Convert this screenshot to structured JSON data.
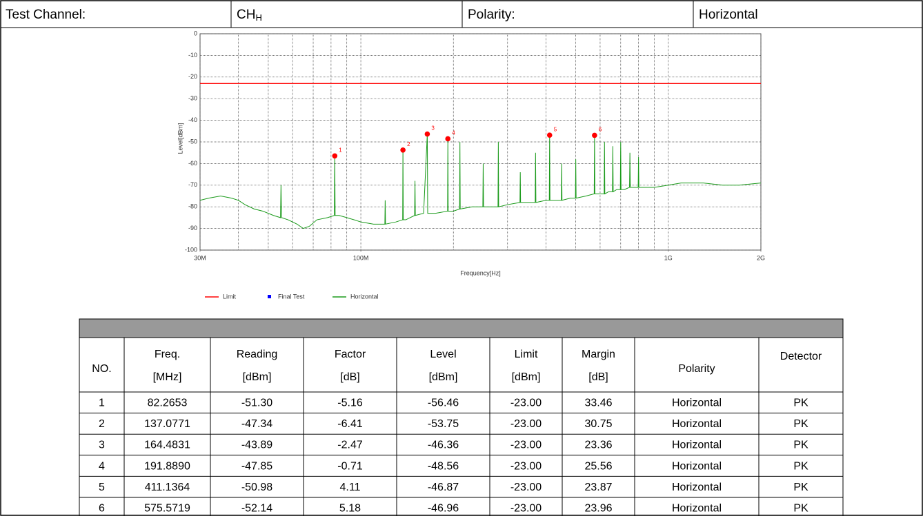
{
  "header": {
    "channel_label": "Test Channel:",
    "channel": "CH",
    "channel_sub": "H",
    "polarity_label": "Polarity:",
    "polarity": "Horizontal"
  },
  "chart_data": {
    "type": "line",
    "x_label": "Frequency[Hz]",
    "y_label": "Level[dBm]",
    "log_x": true,
    "grid": true,
    "xlim": [
      30000000,
      2000000000
    ],
    "xticks": [
      {
        "value": 30000000,
        "label": "30M"
      },
      {
        "value": 100000000,
        "label": "100M"
      },
      {
        "value": 1000000000,
        "label": "1G"
      },
      {
        "value": 2000000000,
        "label": "2G"
      }
    ],
    "xminor": [
      40000000,
      50000000,
      60000000,
      70000000,
      80000000,
      90000000,
      200000000,
      300000000,
      400000000,
      500000000,
      600000000,
      700000000,
      800000000,
      900000000
    ],
    "ylim": [
      -100,
      0
    ],
    "yticks": [
      0,
      -10,
      -20,
      -30,
      -40,
      -50,
      -60,
      -70,
      -80,
      -90,
      -100
    ],
    "series": [
      {
        "name": "Limit",
        "color": "#ff0000",
        "x": [
          30000000,
          2000000000
        ],
        "values": [
          -23,
          -23
        ]
      },
      {
        "name": "Final Test",
        "color": "#0000ff",
        "marker_color": "#ff0000",
        "labels": [
          "1",
          "2",
          "3",
          "4",
          "5",
          "6"
        ],
        "x": [
          82265300,
          137077100,
          164483100,
          191889000,
          411136400,
          575571900
        ],
        "values": [
          -56.46,
          -53.75,
          -46.36,
          -48.56,
          -46.87,
          -46.96
        ]
      },
      {
        "name": "Horizontal",
        "color": "#1a9a1a",
        "x": [
          30000000,
          32000000,
          35000000,
          38000000,
          40000000,
          42000000,
          45000000,
          48000000,
          52000000,
          54800000,
          55000000,
          55200000,
          58000000,
          62000000,
          65000000,
          68000000,
          72000000,
          78000000,
          82000000,
          82265300,
          82500000,
          85000000,
          90000000,
          95000000,
          100000000,
          110000000,
          119700000,
          120000000,
          120300000,
          130000000,
          136800000,
          137077100,
          137400000,
          140000000,
          149600000,
          150000000,
          150400000,
          160000000,
          164483100,
          165000000,
          175000000,
          191500000,
          191889000,
          192300000,
          200000000,
          209500000,
          210000000,
          210500000,
          230000000,
          249300000,
          250000000,
          250700000,
          260000000,
          279300000,
          280000000,
          280700000,
          300000000,
          329200000,
          330000000,
          330800000,
          350000000,
          369000000,
          370000000,
          371000000,
          400000000,
          410100000,
          411136400,
          412200000,
          430000000,
          448900000,
          450000000,
          451100000,
          480000000,
          498700000,
          500000000,
          501300000,
          540000000,
          574000000,
          575571900,
          577000000,
          600000000,
          618400000,
          620000000,
          621600000,
          640000000,
          658200000,
          660000000,
          661800000,
          680000000,
          698100000,
          700000000,
          701900000,
          720000000,
          747900000,
          750000000,
          752100000,
          770000000,
          797800000,
          800000000,
          802200000,
          900000000,
          1000000000,
          1100000000,
          1300000000,
          1500000000,
          1700000000,
          2000000000
        ],
        "values": [
          -77,
          -76,
          -75,
          -76,
          -77,
          -79,
          -81,
          -82,
          -84,
          -85,
          -70,
          -85,
          -86,
          -88,
          -90,
          -89,
          -86,
          -85,
          -84,
          -56.46,
          -84,
          -84,
          -85,
          -86,
          -87,
          -88,
          -88,
          -77,
          -88,
          -87,
          -86,
          -53.75,
          -86,
          -86,
          -84,
          -68,
          -84,
          -83,
          -46.36,
          -83,
          -83,
          -82,
          -48.56,
          -82,
          -82,
          -81,
          -50,
          -81,
          -80,
          -80,
          -60,
          -80,
          -80,
          -80,
          -50,
          -80,
          -79,
          -78,
          -64,
          -78,
          -78,
          -78,
          -55,
          -78,
          -77,
          -77,
          -46.87,
          -77,
          -77,
          -77,
          -60,
          -77,
          -76,
          -76,
          -58,
          -76,
          -75,
          -74,
          -46.96,
          -74,
          -74,
          -74,
          -50,
          -74,
          -73,
          -73,
          -52,
          -73,
          -72,
          -72,
          -50,
          -72,
          -72,
          -71,
          -55,
          -71,
          -71,
          -71,
          -57,
          -71,
          -71,
          -70,
          -69,
          -69,
          -70,
          -70,
          -69
        ]
      }
    ]
  },
  "table": {
    "title": "",
    "headers": [
      [
        "NO."
      ],
      [
        "Freq.",
        "[MHz]"
      ],
      [
        "Reading",
        "[dBm]"
      ],
      [
        "Factor",
        "[dB]"
      ],
      [
        "Level",
        "[dBm]"
      ],
      [
        "Limit",
        "[dBm]"
      ],
      [
        "Margin",
        "[dB]"
      ],
      [
        "Polarity"
      ],
      [
        "Detector"
      ]
    ],
    "rows": [
      [
        "1",
        "82.2653",
        "-51.30",
        "-5.16",
        "-56.46",
        "-23.00",
        "33.46",
        "Horizontal",
        "PK"
      ],
      [
        "2",
        "137.0771",
        "-47.34",
        "-6.41",
        "-53.75",
        "-23.00",
        "30.75",
        "Horizontal",
        "PK"
      ],
      [
        "3",
        "164.4831",
        "-43.89",
        "-2.47",
        "-46.36",
        "-23.00",
        "23.36",
        "Horizontal",
        "PK"
      ],
      [
        "4",
        "191.8890",
        "-47.85",
        "-0.71",
        "-48.56",
        "-23.00",
        "25.56",
        "Horizontal",
        "PK"
      ],
      [
        "5",
        "411.1364",
        "-50.98",
        "4.11",
        "-46.87",
        "-23.00",
        "23.87",
        "Horizontal",
        "PK"
      ],
      [
        "6",
        "575.5719",
        "-52.14",
        "5.18",
        "-46.96",
        "-23.00",
        "23.96",
        "Horizontal",
        "PK"
      ]
    ]
  }
}
